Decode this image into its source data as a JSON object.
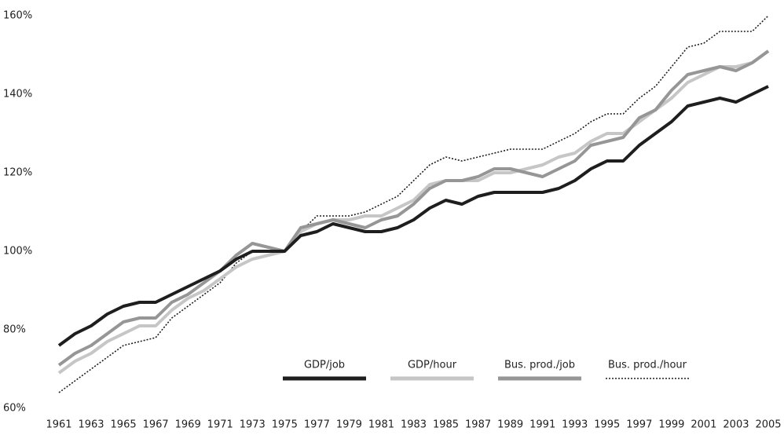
{
  "chart_data": {
    "type": "line",
    "x": [
      1961,
      1962,
      1963,
      1964,
      1965,
      1966,
      1967,
      1968,
      1969,
      1970,
      1971,
      1972,
      1973,
      1974,
      1975,
      1976,
      1977,
      1978,
      1979,
      1980,
      1981,
      1982,
      1983,
      1984,
      1985,
      1986,
      1987,
      1988,
      1989,
      1990,
      1991,
      1992,
      1993,
      1994,
      1995,
      1996,
      1997,
      1998,
      1999,
      2000,
      2001,
      2002,
      2003,
      2004,
      2005
    ],
    "xlim": [
      1961,
      2005
    ],
    "xticks": [
      1961,
      1963,
      1965,
      1967,
      1969,
      1971,
      1973,
      1975,
      1977,
      1979,
      1981,
      1983,
      1985,
      1987,
      1989,
      1991,
      1993,
      1995,
      1997,
      1999,
      2001,
      2003,
      2005
    ],
    "ylim": [
      60,
      160
    ],
    "yticks": [
      {
        "value": 60,
        "label": "60%"
      },
      {
        "value": 80,
        "label": "80%"
      },
      {
        "value": 100,
        "label": "100%"
      },
      {
        "value": 120,
        "label": "120%"
      },
      {
        "value": 140,
        "label": "140%"
      },
      {
        "value": 160,
        "label": "160%"
      }
    ],
    "grid": false,
    "legend": "lower center",
    "series": [
      {
        "name": "GDP/job",
        "color": "#1e1e1e",
        "dash": "solid",
        "values": [
          76,
          79,
          81,
          84,
          86,
          87,
          87,
          89,
          91,
          93,
          95,
          98,
          100,
          100,
          100,
          104,
          105,
          107,
          106,
          105,
          105,
          106,
          108,
          111,
          113,
          112,
          114,
          115,
          115,
          115,
          115,
          116,
          118,
          121,
          123,
          123,
          127,
          130,
          133,
          137,
          138,
          139,
          138,
          140,
          142
        ]
      },
      {
        "name": "GDP/hour",
        "color": "#c6c6c6",
        "dash": "solid",
        "values": [
          69,
          72,
          74,
          77,
          79,
          81,
          81,
          85,
          88,
          90,
          93,
          96,
          98,
          99,
          100,
          105,
          107,
          108,
          108,
          109,
          109,
          111,
          113,
          117,
          118,
          118,
          118,
          120,
          120,
          121,
          122,
          124,
          125,
          128,
          130,
          130,
          133,
          136,
          139,
          143,
          145,
          147,
          147,
          148,
          151
        ]
      },
      {
        "name": "Bus. prod./job",
        "color": "#969696",
        "dash": "solid",
        "values": [
          71,
          74,
          76,
          79,
          82,
          83,
          83,
          87,
          89,
          92,
          95,
          99,
          102,
          101,
          100,
          106,
          107,
          108,
          107,
          106,
          108,
          109,
          112,
          116,
          118,
          118,
          119,
          121,
          121,
          120,
          119,
          121,
          123,
          127,
          128,
          129,
          134,
          136,
          141,
          145,
          146,
          147,
          146,
          148,
          151
        ]
      },
      {
        "name": "Bus. prod./hour",
        "color": "#1e1e1e",
        "dash": "dotted",
        "values": [
          64,
          67,
          70,
          73,
          76,
          77,
          78,
          83,
          86,
          89,
          92,
          97,
          100,
          100,
          100,
          105,
          109,
          109,
          109,
          110,
          112,
          114,
          118,
          122,
          124,
          123,
          124,
          125,
          126,
          126,
          126,
          128,
          130,
          133,
          135,
          135,
          139,
          142,
          147,
          152,
          153,
          156,
          156,
          156,
          160
        ]
      }
    ]
  }
}
